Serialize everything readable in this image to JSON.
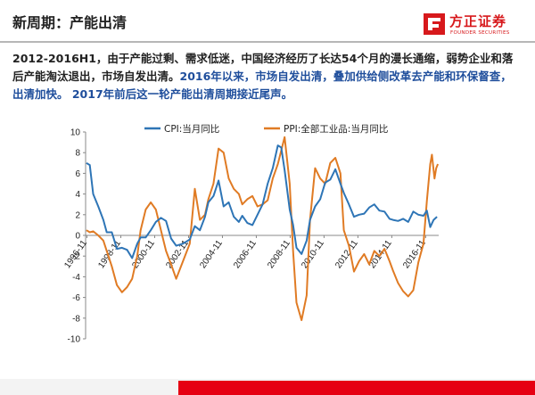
{
  "slide": {
    "title": "新周期：产能出清",
    "brand": "方正证券",
    "brand_en": "FOUNDER SECURITIES",
    "accent_color": "#d7191c",
    "text_color": "#222222",
    "highlight_color": "#1f4e9c"
  },
  "body": {
    "part1": "2012-2016H1，由于产能过剩、需求低迷，中国经济经历了长达54个月的漫长通缩，弱势企业和落后产能淘汰退出，市场自发出清。",
    "part2": "2016年以来，市场自发出清，叠加供给侧改革去产能和环保督查，出清加快。 2017年前后这一轮产能出清周期接近尾声。"
  },
  "chart_data": {
    "type": "line",
    "title": "",
    "xlabel": "",
    "ylabel": "",
    "ylim": [
      -10,
      10
    ],
    "yticks": [
      -10,
      -8,
      -6,
      -4,
      -2,
      0,
      2,
      4,
      6,
      8,
      10
    ],
    "xlim": [
      1996.75,
      2017.6
    ],
    "xtick_labels": [
      {
        "label": "1996-11",
        "x": 1996.83
      },
      {
        "label": "1998-11",
        "x": 1998.83
      },
      {
        "label": "2000-11",
        "x": 2000.83
      },
      {
        "label": "2002-11",
        "x": 2002.83
      },
      {
        "label": "2004-11",
        "x": 2004.83
      },
      {
        "label": "2006-11",
        "x": 2006.83
      },
      {
        "label": "2008-11",
        "x": 2008.83
      },
      {
        "label": "2010-11",
        "x": 2010.83
      },
      {
        "label": "2012-11",
        "x": 2012.83
      },
      {
        "label": "2014-11",
        "x": 2014.83
      },
      {
        "label": "2016-11",
        "x": 2016.83
      }
    ],
    "grid": false,
    "legend_position": "top",
    "series": [
      {
        "name": "CPI:当月同比",
        "color": "#2e75b6",
        "points": [
          [
            1996.8,
            7.0
          ],
          [
            1997.0,
            6.8
          ],
          [
            1997.2,
            4.0
          ],
          [
            1997.5,
            2.8
          ],
          [
            1997.8,
            1.5
          ],
          [
            1998.0,
            0.3
          ],
          [
            1998.3,
            0.3
          ],
          [
            1998.6,
            -1.3
          ],
          [
            1998.9,
            -1.2
          ],
          [
            1999.2,
            -1.4
          ],
          [
            1999.5,
            -2.2
          ],
          [
            1999.8,
            -0.8
          ],
          [
            2000.0,
            -0.2
          ],
          [
            2000.3,
            -0.2
          ],
          [
            2000.6,
            0.5
          ],
          [
            2000.9,
            1.3
          ],
          [
            2001.2,
            1.7
          ],
          [
            2001.5,
            1.4
          ],
          [
            2001.8,
            -0.3
          ],
          [
            2002.1,
            -1.0
          ],
          [
            2002.5,
            -0.8
          ],
          [
            2002.9,
            -0.4
          ],
          [
            2003.2,
            0.9
          ],
          [
            2003.5,
            0.5
          ],
          [
            2003.8,
            1.8
          ],
          [
            2004.0,
            3.2
          ],
          [
            2004.3,
            3.8
          ],
          [
            2004.6,
            5.3
          ],
          [
            2004.9,
            2.8
          ],
          [
            2005.2,
            3.2
          ],
          [
            2005.5,
            1.8
          ],
          [
            2005.8,
            1.3
          ],
          [
            2006.0,
            1.9
          ],
          [
            2006.3,
            1.2
          ],
          [
            2006.6,
            1.0
          ],
          [
            2006.9,
            2.0
          ],
          [
            2007.2,
            3.0
          ],
          [
            2007.5,
            5.0
          ],
          [
            2007.8,
            6.5
          ],
          [
            2008.1,
            8.7
          ],
          [
            2008.3,
            8.5
          ],
          [
            2008.5,
            6.3
          ],
          [
            2008.8,
            2.5
          ],
          [
            2009.0,
            1.0
          ],
          [
            2009.2,
            -1.2
          ],
          [
            2009.5,
            -1.8
          ],
          [
            2009.8,
            -0.5
          ],
          [
            2010.0,
            1.5
          ],
          [
            2010.3,
            2.8
          ],
          [
            2010.6,
            3.5
          ],
          [
            2010.9,
            5.1
          ],
          [
            2011.2,
            5.4
          ],
          [
            2011.5,
            6.4
          ],
          [
            2011.8,
            5.0
          ],
          [
            2012.0,
            4.1
          ],
          [
            2012.3,
            3.0
          ],
          [
            2012.6,
            1.8
          ],
          [
            2012.9,
            2.0
          ],
          [
            2013.2,
            2.1
          ],
          [
            2013.5,
            2.7
          ],
          [
            2013.8,
            3.0
          ],
          [
            2014.1,
            2.4
          ],
          [
            2014.4,
            2.3
          ],
          [
            2014.7,
            1.6
          ],
          [
            2014.9,
            1.5
          ],
          [
            2015.2,
            1.4
          ],
          [
            2015.5,
            1.6
          ],
          [
            2015.8,
            1.3
          ],
          [
            2016.1,
            2.3
          ],
          [
            2016.4,
            2.0
          ],
          [
            2016.7,
            1.9
          ],
          [
            2016.9,
            2.4
          ],
          [
            2017.1,
            0.8
          ],
          [
            2017.3,
            1.5
          ],
          [
            2017.5,
            1.8
          ]
        ]
      },
      {
        "name": "PPI:全部工业品:当月同比",
        "color": "#e07b24",
        "points": [
          [
            1996.8,
            0.5
          ],
          [
            1997.0,
            0.3
          ],
          [
            1997.2,
            0.4
          ],
          [
            1997.5,
            0.0
          ],
          [
            1997.8,
            -0.5
          ],
          [
            1998.0,
            -1.5
          ],
          [
            1998.3,
            -3.0
          ],
          [
            1998.6,
            -4.8
          ],
          [
            1998.9,
            -5.5
          ],
          [
            1999.2,
            -5.0
          ],
          [
            1999.5,
            -4.2
          ],
          [
            1999.8,
            -2.0
          ],
          [
            2000.0,
            0.5
          ],
          [
            2000.3,
            2.5
          ],
          [
            2000.6,
            3.2
          ],
          [
            2000.9,
            2.5
          ],
          [
            2001.2,
            0.5
          ],
          [
            2001.5,
            -1.5
          ],
          [
            2001.8,
            -2.8
          ],
          [
            2002.1,
            -4.2
          ],
          [
            2002.5,
            -2.5
          ],
          [
            2002.9,
            -0.8
          ],
          [
            2003.2,
            4.5
          ],
          [
            2003.5,
            1.5
          ],
          [
            2003.8,
            2.0
          ],
          [
            2004.0,
            3.5
          ],
          [
            2004.3,
            5.0
          ],
          [
            2004.6,
            8.4
          ],
          [
            2004.9,
            8.0
          ],
          [
            2005.2,
            5.5
          ],
          [
            2005.5,
            4.5
          ],
          [
            2005.8,
            4.0
          ],
          [
            2006.0,
            3.0
          ],
          [
            2006.3,
            3.5
          ],
          [
            2006.6,
            3.8
          ],
          [
            2006.9,
            2.8
          ],
          [
            2007.2,
            3.0
          ],
          [
            2007.5,
            3.4
          ],
          [
            2007.8,
            5.5
          ],
          [
            2008.1,
            6.9
          ],
          [
            2008.3,
            8.2
          ],
          [
            2008.5,
            9.5
          ],
          [
            2008.8,
            5.0
          ],
          [
            2009.0,
            -1.5
          ],
          [
            2009.2,
            -6.5
          ],
          [
            2009.5,
            -8.2
          ],
          [
            2009.8,
            -5.8
          ],
          [
            2010.0,
            1.5
          ],
          [
            2010.3,
            6.5
          ],
          [
            2010.6,
            5.5
          ],
          [
            2010.9,
            5.0
          ],
          [
            2011.2,
            7.0
          ],
          [
            2011.5,
            7.5
          ],
          [
            2011.8,
            6.0
          ],
          [
            2012.0,
            0.5
          ],
          [
            2012.3,
            -1.0
          ],
          [
            2012.6,
            -3.5
          ],
          [
            2012.9,
            -2.5
          ],
          [
            2013.2,
            -1.8
          ],
          [
            2013.5,
            -2.8
          ],
          [
            2013.8,
            -1.5
          ],
          [
            2014.1,
            -2.0
          ],
          [
            2014.4,
            -1.3
          ],
          [
            2014.7,
            -2.5
          ],
          [
            2014.9,
            -3.4
          ],
          [
            2015.2,
            -4.6
          ],
          [
            2015.5,
            -5.4
          ],
          [
            2015.8,
            -5.9
          ],
          [
            2016.1,
            -5.3
          ],
          [
            2016.4,
            -2.6
          ],
          [
            2016.7,
            -0.8
          ],
          [
            2016.9,
            3.3
          ],
          [
            2017.1,
            6.9
          ],
          [
            2017.2,
            7.8
          ],
          [
            2017.35,
            5.5
          ],
          [
            2017.45,
            6.5
          ],
          [
            2017.55,
            6.9
          ]
        ]
      }
    ]
  }
}
